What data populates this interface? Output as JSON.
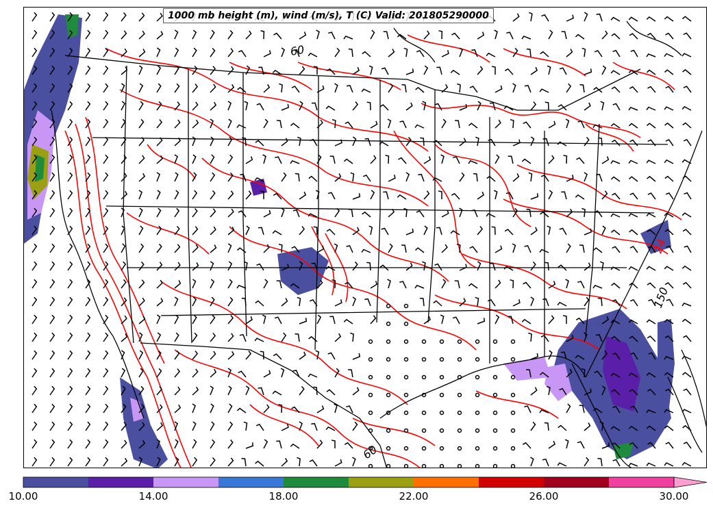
{
  "title": "1000 mb height (m), wind (m/s), T (C) Valid: 201805290000",
  "colorbar": {
    "min": 10,
    "max": 30,
    "colors": [
      "#4a4fa0",
      "#5a1ea8",
      "#c896f5",
      "#3a78d8",
      "#1e8c3c",
      "#9aa012",
      "#ff7000",
      "#d20000",
      "#a0001e",
      "#f040a0"
    ],
    "extend_color": "#ff9ed0",
    "tick_labels": [
      "10.00",
      "14.00",
      "18.00",
      "22.00",
      "26.00",
      "30.00"
    ],
    "tick_values": [
      10,
      14,
      18,
      22,
      26,
      30
    ]
  },
  "contour_labels": [
    {
      "text": "60",
      "color": "#000000"
    },
    {
      "text": "150",
      "color": "#000000"
    },
    {
      "text": "60",
      "color": "#000000"
    },
    {
      "text": "24",
      "color": "#ff0000"
    }
  ],
  "layer_colors": {
    "temperature_contours": "#ff0000",
    "height_contours_and_borders": "#000000",
    "wind_barbs": "#000000"
  }
}
